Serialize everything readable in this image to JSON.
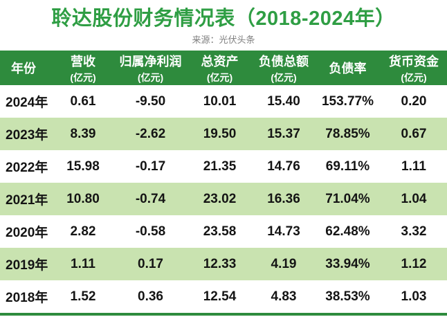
{
  "colors": {
    "title_green": "#2f9e44",
    "header_green": "#2e8b3d",
    "stripe_green": "#c9e3b0",
    "source_gray": "#7f7f7f",
    "text_black": "#141414"
  },
  "page": {
    "title": "聆达股份财务情况表（2018-2024年）",
    "source": "来源：光伏头条"
  },
  "table_header": [
    {
      "label": "年份",
      "unit": ""
    },
    {
      "label": "营收",
      "unit": "(亿元)"
    },
    {
      "label": "归属净利润",
      "unit": "(亿元)"
    },
    {
      "label": "总资产",
      "unit": "(亿元)"
    },
    {
      "label": "负债总额",
      "unit": "(亿元)"
    },
    {
      "label": "负债率",
      "unit": ""
    },
    {
      "label": "货币资金",
      "unit": "(亿元)"
    }
  ],
  "chart_data": {
    "type": "table",
    "title": "聆达股份财务情况表（2018-2024年）",
    "source": "来源：光伏头条",
    "columns": [
      "年份",
      "营收(亿元)",
      "归属净利润(亿元)",
      "总资产(亿元)",
      "负债总额(亿元)",
      "负债率",
      "货币资金(亿元)"
    ],
    "rows": [
      [
        "2024年",
        "0.61",
        "-9.50",
        "10.01",
        "15.40",
        "153.77%",
        "0.20"
      ],
      [
        "2023年",
        "8.39",
        "-2.62",
        "19.50",
        "15.37",
        "78.85%",
        "0.67"
      ],
      [
        "2022年",
        "15.98",
        "-0.17",
        "21.35",
        "14.76",
        "69.11%",
        "1.11"
      ],
      [
        "2021年",
        "10.80",
        "-0.74",
        "23.02",
        "16.36",
        "71.04%",
        "1.04"
      ],
      [
        "2020年",
        "2.82",
        "-0.58",
        "23.58",
        "14.73",
        "62.48%",
        "3.32"
      ],
      [
        "2019年",
        "1.11",
        "0.17",
        "12.33",
        "4.19",
        "33.94%",
        "1.12"
      ],
      [
        "2018年",
        "1.52",
        "0.36",
        "12.54",
        "4.83",
        "38.53%",
        "1.03"
      ]
    ]
  }
}
